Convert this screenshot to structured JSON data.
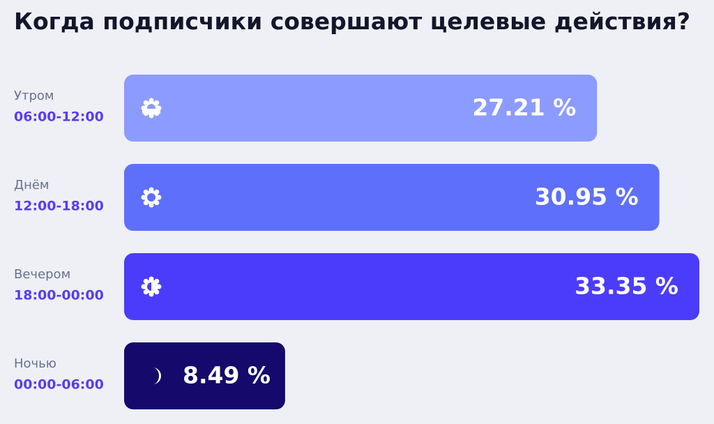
{
  "chart_data": {
    "type": "bar",
    "orientation": "horizontal",
    "title": "Когда подписчики совершают целевые действия?",
    "categories": [
      "Утром",
      "Днём",
      "Вечером",
      "Ночью"
    ],
    "time_ranges": [
      "06:00-12:00",
      "12:00-18:00",
      "18:00-00:00",
      "00:00-06:00"
    ],
    "values": [
      27.21,
      30.95,
      33.35,
      8.49
    ],
    "value_labels": [
      "27.21 %",
      "30.95 %",
      "33.35 %",
      "8.49 %"
    ],
    "colors": [
      "#8c9bff",
      "#5e6ffb",
      "#4b3cfc",
      "#15096b"
    ]
  }
}
